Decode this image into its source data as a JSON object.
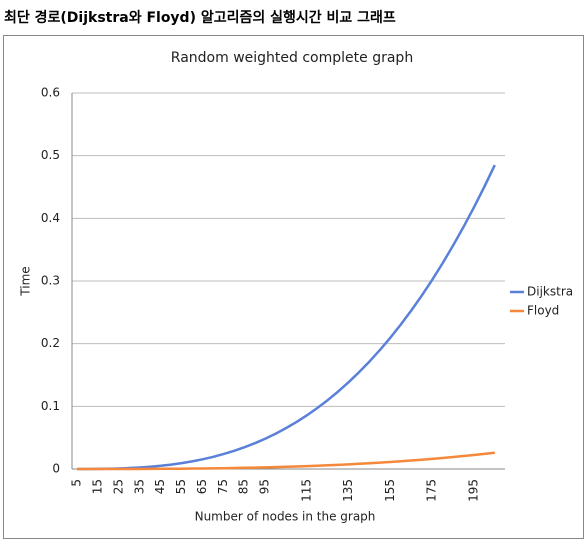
{
  "heading": "최단 경로(Dijkstra와 Floyd) 알고리즘의 실행시간 비교 그래프",
  "chart_data": {
    "type": "line",
    "title": "Random weighted complete graph",
    "x_label": "Number of nodes in the graph",
    "y_label": "Time",
    "categories": [
      "5",
      null,
      "15",
      null,
      "25",
      null,
      "35",
      null,
      "45",
      null,
      "55",
      null,
      "65",
      null,
      "75",
      null,
      "85",
      null,
      "95",
      null,
      null,
      null,
      "115",
      null,
      null,
      null,
      "135",
      null,
      null,
      null,
      "155",
      null,
      null,
      null,
      "175",
      null,
      null,
      null,
      "195",
      null,
      null
    ],
    "series": [
      {
        "name": "Dijkstra",
        "color": "#5a80d8",
        "values": [
          0.0,
          0.0001,
          0.0002,
          0.0005,
          0.0009,
          0.0015,
          0.0024,
          0.0036,
          0.0051,
          0.007,
          0.0094,
          0.0122,
          0.0155,
          0.0193,
          0.0238,
          0.0288,
          0.0346,
          0.041,
          0.0483,
          0.0563,
          0.0652,
          0.0749,
          0.0856,
          0.0973,
          0.11,
          0.1237,
          0.1385,
          0.1545,
          0.1716,
          0.19,
          0.2096,
          0.2306,
          0.2529,
          0.2766,
          0.3017,
          0.3283,
          0.3565,
          0.3861,
          0.4174,
          0.4504,
          0.485
        ]
      },
      {
        "name": "Floyd",
        "color": "#f5883a",
        "values": [
          0,
          0.0,
          0.0,
          0.0,
          0.0,
          0.0001,
          0.0001,
          0.0002,
          0.0003,
          0.0004,
          0.0005,
          0.0007,
          0.0008,
          0.001,
          0.0013,
          0.0015,
          0.0019,
          0.0022,
          0.0026,
          0.003,
          0.0035,
          0.004,
          0.0046,
          0.0052,
          0.0059,
          0.0066,
          0.0074,
          0.0083,
          0.0092,
          0.0102,
          0.0112,
          0.0124,
          0.0136,
          0.0148,
          0.0162,
          0.0176,
          0.0191,
          0.0207,
          0.0224,
          0.0241,
          0.026
        ]
      }
    ],
    "ylim": [
      0,
      0.6
    ],
    "yticks": [
      0,
      0.1,
      0.2,
      0.3,
      0.4,
      0.5,
      0.6
    ],
    "grid": true,
    "legend": "right"
  }
}
